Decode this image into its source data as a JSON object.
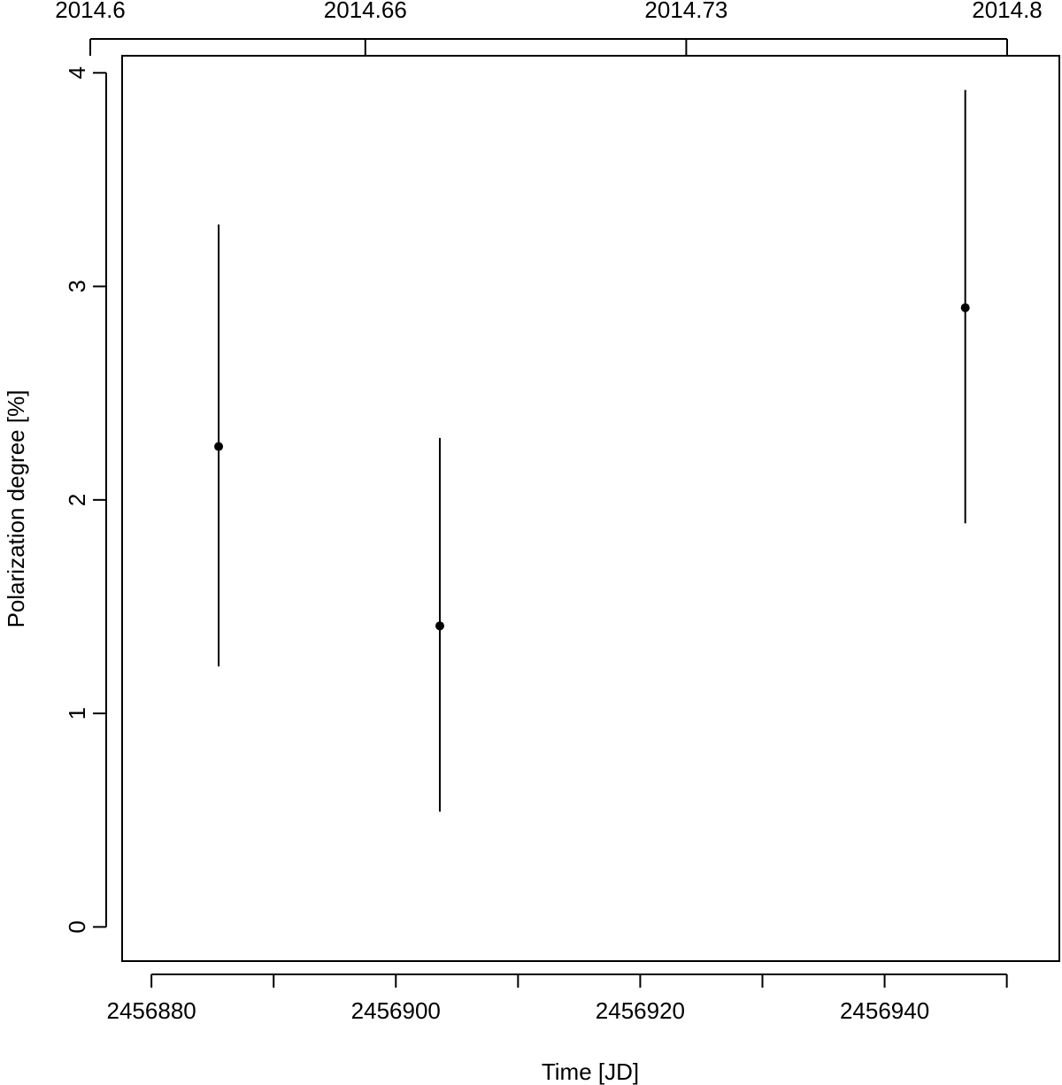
{
  "chart_data": {
    "type": "scatter",
    "title": "",
    "xlabel": "Time [JD]",
    "ylabel": "Polarization degree [%]",
    "x_ticks": [
      {
        "value": 2456880,
        "label": "2456880"
      },
      {
        "value": 2456890,
        "label": ""
      },
      {
        "value": 2456900,
        "label": "2456900"
      },
      {
        "value": 2456910,
        "label": ""
      },
      {
        "value": 2456920,
        "label": "2456920"
      },
      {
        "value": 2456930,
        "label": ""
      },
      {
        "value": 2456940,
        "label": "2456940"
      },
      {
        "value": 2456950,
        "label": ""
      }
    ],
    "y_ticks": [
      {
        "value": 0,
        "label": "0"
      },
      {
        "value": 1,
        "label": "1"
      },
      {
        "value": 2,
        "label": "2"
      },
      {
        "value": 3,
        "label": "3"
      },
      {
        "value": 4,
        "label": "4"
      }
    ],
    "top_axis": {
      "ticks": [
        {
          "value": 2014.6,
          "label": "2014.6"
        },
        {
          "value": 2014.66,
          "label": "2014.66"
        },
        {
          "value": 2014.73,
          "label": "2014.73"
        },
        {
          "value": 2014.8,
          "label": "2014.8"
        }
      ]
    },
    "xlim": [
      2456877.6,
      2456954.3
    ],
    "ylim": [
      -0.16,
      4.08
    ],
    "grid": false,
    "legend": "none",
    "series": [
      {
        "points": [
          {
            "x": 2456885.5,
            "y": 2.25,
            "y_low": 1.22,
            "y_high": 3.29
          },
          {
            "x": 2456903.6,
            "y": 1.41,
            "y_low": 0.54,
            "y_high": 2.29
          },
          {
            "x": 2456946.6,
            "y": 2.9,
            "y_low": 1.89,
            "y_high": 3.92
          }
        ]
      }
    ]
  }
}
